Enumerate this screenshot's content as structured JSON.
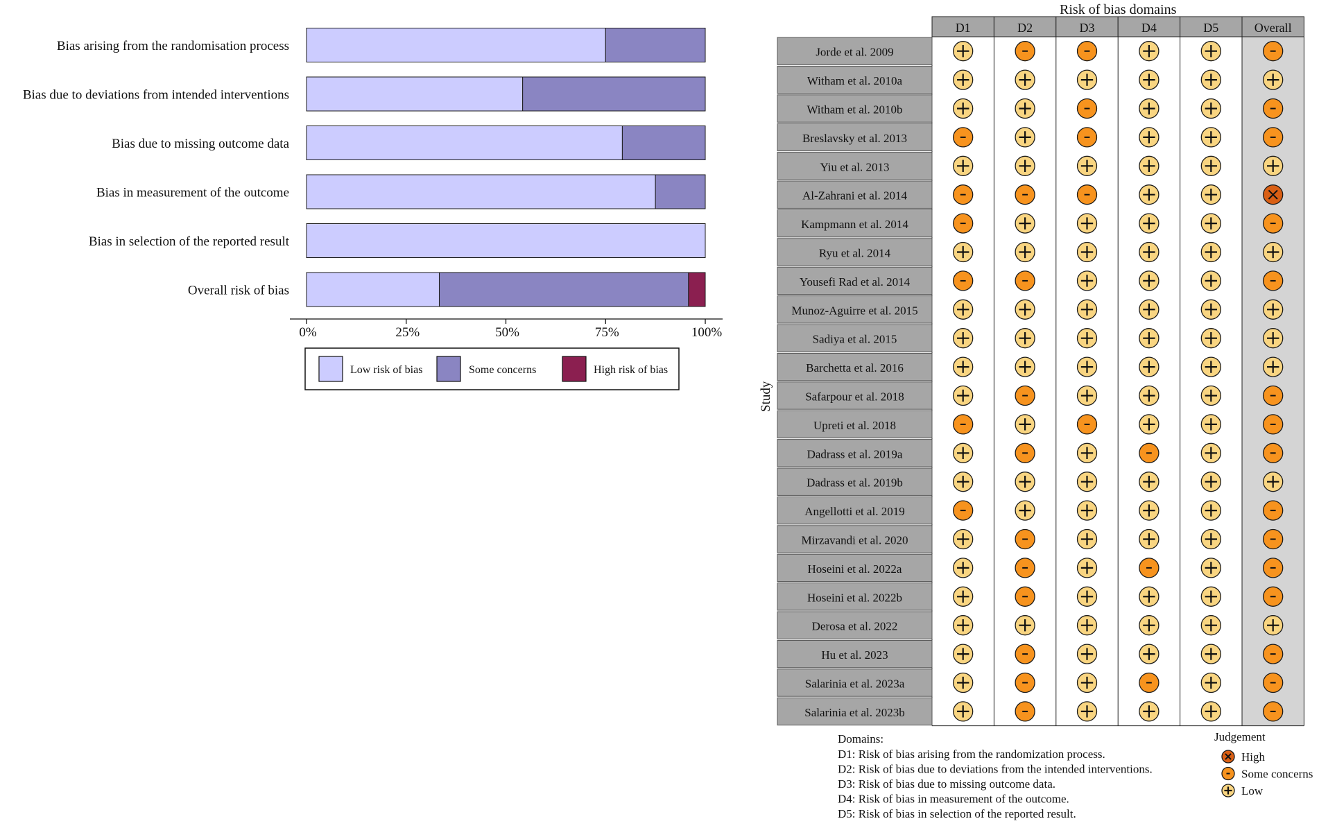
{
  "colors": {
    "low": "#ccccff",
    "some": "#8a85c2",
    "high": "#8b1f50",
    "dot_low": "#f9d581",
    "dot_some": "#f7931e",
    "dot_high": "#d95f14",
    "study_cell": "#a6a6a6",
    "overall_col": "#d4d4d4"
  },
  "chart_data": [
    {
      "type": "bar",
      "stacked": true,
      "orientation": "horizontal",
      "title": "",
      "categories": [
        "Bias arising from the randomisation process",
        "Bias due to deviations from intended interventions",
        "Bias due to missing outcome data",
        "Bias in measurement of the outcome",
        "Bias in selection of the reported result",
        "Overall risk of bias"
      ],
      "series": [
        {
          "name": "Low risk of bias",
          "key": "low",
          "values": [
            75,
            54.2,
            79.2,
            87.5,
            100,
            33.3
          ]
        },
        {
          "name": "Some concerns",
          "key": "some",
          "values": [
            25,
            45.8,
            20.8,
            12.5,
            0,
            62.5
          ]
        },
        {
          "name": "High risk of bias",
          "key": "high",
          "values": [
            0,
            0,
            0,
            0,
            0,
            4.2
          ]
        }
      ],
      "xlim": [
        0,
        100
      ],
      "xticks": [
        0,
        25,
        50,
        75,
        100
      ],
      "xtick_labels": [
        "0%",
        "25%",
        "50%",
        "75%",
        "100%"
      ],
      "legend": {
        "placement": "bottom",
        "labels": [
          "Low risk of bias",
          "Some concerns",
          "High risk of bias"
        ]
      }
    },
    {
      "type": "table",
      "title": "Risk of bias domains",
      "y_label": "Study",
      "domains": [
        "D1",
        "D2",
        "D3",
        "D4",
        "D5",
        "Overall"
      ],
      "studies": [
        {
          "name": "Jorde et al. 2009",
          "judgements": [
            "low",
            "some",
            "some",
            "low",
            "low",
            "some"
          ]
        },
        {
          "name": "Witham et al. 2010a",
          "judgements": [
            "low",
            "low",
            "low",
            "low",
            "low",
            "low"
          ]
        },
        {
          "name": "Witham et al. 2010b",
          "judgements": [
            "low",
            "low",
            "some",
            "low",
            "low",
            "some"
          ]
        },
        {
          "name": "Breslavsky et al. 2013",
          "judgements": [
            "some",
            "low",
            "some",
            "low",
            "low",
            "some"
          ]
        },
        {
          "name": "Yiu et al. 2013",
          "judgements": [
            "low",
            "low",
            "low",
            "low",
            "low",
            "low"
          ]
        },
        {
          "name": "Al-Zahrani et al. 2014",
          "judgements": [
            "some",
            "some",
            "some",
            "low",
            "low",
            "high"
          ]
        },
        {
          "name": "Kampmann et al. 2014",
          "judgements": [
            "some",
            "low",
            "low",
            "low",
            "low",
            "some"
          ]
        },
        {
          "name": "Ryu et al. 2014",
          "judgements": [
            "low",
            "low",
            "low",
            "low",
            "low",
            "low"
          ]
        },
        {
          "name": "Yousefi Rad et al. 2014",
          "judgements": [
            "some",
            "some",
            "low",
            "low",
            "low",
            "some"
          ]
        },
        {
          "name": "Munoz-Aguirre et al. 2015",
          "judgements": [
            "low",
            "low",
            "low",
            "low",
            "low",
            "low"
          ]
        },
        {
          "name": "Sadiya et al. 2015",
          "judgements": [
            "low",
            "low",
            "low",
            "low",
            "low",
            "low"
          ]
        },
        {
          "name": "Barchetta et al. 2016",
          "judgements": [
            "low",
            "low",
            "low",
            "low",
            "low",
            "low"
          ]
        },
        {
          "name": "Safarpour et al. 2018",
          "judgements": [
            "low",
            "some",
            "low",
            "low",
            "low",
            "some"
          ]
        },
        {
          "name": "Upreti et al. 2018",
          "judgements": [
            "some",
            "low",
            "some",
            "low",
            "low",
            "some"
          ]
        },
        {
          "name": "Dadrass et al. 2019a",
          "judgements": [
            "low",
            "some",
            "low",
            "some",
            "low",
            "some"
          ]
        },
        {
          "name": "Dadrass et al. 2019b",
          "judgements": [
            "low",
            "low",
            "low",
            "low",
            "low",
            "low"
          ]
        },
        {
          "name": "Angellotti et al. 2019",
          "judgements": [
            "some",
            "low",
            "low",
            "low",
            "low",
            "some"
          ]
        },
        {
          "name": "Mirzavandi et al. 2020",
          "judgements": [
            "low",
            "some",
            "low",
            "low",
            "low",
            "some"
          ]
        },
        {
          "name": "Hoseini et al. 2022a",
          "judgements": [
            "low",
            "some",
            "low",
            "some",
            "low",
            "some"
          ]
        },
        {
          "name": "Hoseini et al. 2022b",
          "judgements": [
            "low",
            "some",
            "low",
            "low",
            "low",
            "some"
          ]
        },
        {
          "name": "Derosa et al. 2022",
          "judgements": [
            "low",
            "low",
            "low",
            "low",
            "low",
            "low"
          ]
        },
        {
          "name": "Hu et al. 2023",
          "judgements": [
            "low",
            "some",
            "low",
            "low",
            "low",
            "some"
          ]
        },
        {
          "name": "Salarinia et al. 2023a",
          "judgements": [
            "low",
            "some",
            "low",
            "some",
            "low",
            "some"
          ]
        },
        {
          "name": "Salarinia et al. 2023b",
          "judgements": [
            "low",
            "some",
            "low",
            "low",
            "low",
            "some"
          ]
        }
      ],
      "symbols": {
        "low": "+",
        "some": "-",
        "high": "X"
      },
      "domains_note": {
        "title": "Domains:",
        "lines": [
          "D1: Risk of bias arising from the randomization process.",
          "D2: Risk of bias due to deviations from the intended interventions.",
          "D3: Risk of bias due to missing outcome data.",
          "D4: Risk of bias in measurement of the outcome.",
          "D5: Risk of bias in selection of the reported result."
        ]
      },
      "judgement_legend": {
        "title": "Judgement",
        "items": [
          {
            "key": "high",
            "symbol": "X",
            "label": "High"
          },
          {
            "key": "some",
            "symbol": "-",
            "label": "Some concerns"
          },
          {
            "key": "low",
            "symbol": "+",
            "label": "Low"
          }
        ]
      }
    }
  ]
}
